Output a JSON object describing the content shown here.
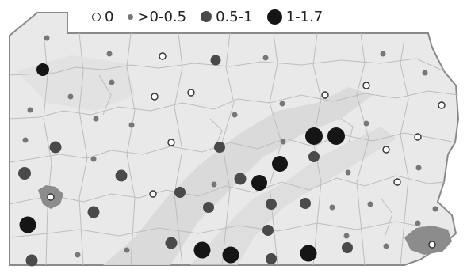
{
  "legend": {
    "items": [
      {
        "key": "zero",
        "label": "0"
      },
      {
        "key": "small",
        "label": ">0-0.5"
      },
      {
        "key": "mid",
        "label": "0.5-1"
      },
      {
        "key": "large",
        "label": "1-1.7"
      }
    ]
  },
  "colors": {
    "state_fill": "#e9e9e9",
    "county_border": "#bdbdbd",
    "state_border": "#8a8a8a",
    "terrain": "#d8d8d8",
    "urban": "#8c8c8c",
    "symbol_small": "#777777",
    "symbol_mid": "#4a4a4a",
    "symbol_large": "#151515"
  }
}
